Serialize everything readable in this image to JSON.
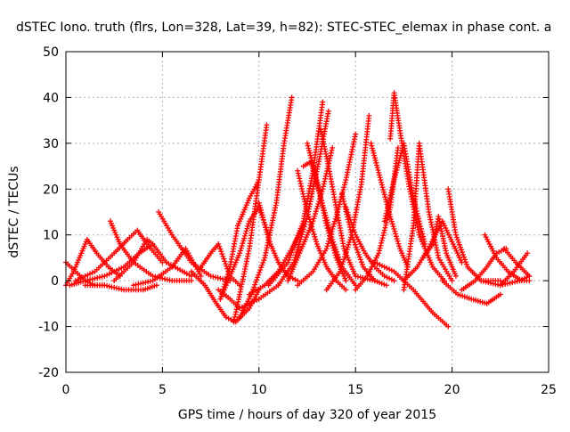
{
  "chart_data": {
    "type": "scatter",
    "title": "dSTEC Iono. truth (flrs, Lon=328, Lat=39, h=82): STEC-STEC_elemax in phase cont. a",
    "xlabel": "GPS time / hours of day 320 of year 2015",
    "ylabel": "dSTEC  / TECUs",
    "xlim": [
      0,
      25
    ],
    "ylim": [
      -20,
      50
    ],
    "xticks": [
      0,
      5,
      10,
      15,
      20,
      25
    ],
    "yticks": [
      -20,
      -10,
      0,
      10,
      20,
      30,
      40,
      50
    ],
    "grid": true,
    "marker": "+",
    "color": "#ff0000",
    "series": [
      {
        "x": [
          0.0,
          0.5,
          1.0,
          1.5,
          2.0
        ],
        "y": [
          4,
          2,
          0,
          -1,
          -1
        ]
      },
      {
        "x": [
          0.0,
          0.4,
          0.8,
          1.1,
          1.6,
          2.2,
          2.8
        ],
        "y": [
          -1,
          2,
          6,
          9,
          6,
          3,
          1
        ]
      },
      {
        "x": [
          0.2,
          1.0,
          2.0,
          3.0,
          3.8,
          4.5
        ],
        "y": [
          -1,
          0,
          1,
          3,
          6,
          8
        ]
      },
      {
        "x": [
          2.3,
          2.8,
          3.5,
          4.5,
          5.5,
          6.5
        ],
        "y": [
          13,
          8,
          4,
          1,
          0,
          0
        ]
      },
      {
        "x": [
          0.5,
          1.5,
          2.5,
          3.2,
          3.7,
          4.2,
          5.0
        ],
        "y": [
          0,
          2,
          6,
          9,
          11,
          8,
          4
        ]
      },
      {
        "x": [
          1.0,
          2.0,
          3.0,
          4.0,
          4.7
        ],
        "y": [
          -1,
          -1,
          -2,
          -2,
          -1
        ]
      },
      {
        "x": [
          2.5,
          3.5,
          4.2,
          4.5,
          5.2,
          6.5
        ],
        "y": [
          0,
          4,
          9,
          8,
          4,
          1
        ]
      },
      {
        "x": [
          4.8,
          5.5,
          6.5,
          7.5,
          8.5
        ],
        "y": [
          15,
          10,
          4,
          1,
          0
        ]
      },
      {
        "x": [
          3.5,
          4.5,
          5.5,
          6.2,
          7.0
        ],
        "y": [
          -1,
          0,
          3,
          7,
          1
        ]
      },
      {
        "x": [
          6.5,
          7.2,
          7.8,
          8.3,
          8.8,
          9.5,
          10.0
        ],
        "y": [
          2,
          -1,
          -5,
          -8,
          -9,
          -6,
          -2
        ]
      },
      {
        "x": [
          7.0,
          7.5,
          7.9,
          8.5,
          9.0
        ],
        "y": [
          3,
          6,
          8,
          1,
          -1
        ]
      },
      {
        "x": [
          7.9,
          8.5,
          9.0,
          10.0,
          11.0
        ],
        "y": [
          -2,
          -4,
          -6,
          -4,
          -1
        ]
      },
      {
        "x": [
          8.0,
          8.5,
          9.0,
          9.5,
          10.0,
          10.5
        ],
        "y": [
          -4,
          1,
          6,
          13,
          16,
          10
        ]
      },
      {
        "x": [
          8.0,
          8.5,
          8.9,
          9.5,
          10.0
        ],
        "y": [
          -4,
          3,
          12,
          18,
          22
        ]
      },
      {
        "x": [
          8.7,
          9.0,
          9.5,
          10.0,
          10.4
        ],
        "y": [
          -9,
          -3,
          7,
          22,
          34
        ]
      },
      {
        "x": [
          9.0,
          9.6,
          10.3,
          10.9,
          11.3,
          11.7
        ],
        "y": [
          -8,
          -3,
          5,
          17,
          30,
          40
        ]
      },
      {
        "x": [
          10.0,
          10.5,
          11.0,
          11.5,
          12.0
        ],
        "y": [
          17,
          9,
          4,
          1,
          0
        ]
      },
      {
        "x": [
          9.5,
          10.3,
          11.0,
          11.7,
          12.3
        ],
        "y": [
          -3,
          -1,
          2,
          7,
          12
        ]
      },
      {
        "x": [
          10.5,
          11.5,
          12.3,
          12.8,
          13.3
        ],
        "y": [
          -1,
          4,
          13,
          24,
          39
        ]
      },
      {
        "x": [
          11.0,
          11.8,
          12.5,
          13.1,
          13.6
        ],
        "y": [
          -1,
          4,
          14,
          26,
          37
        ]
      },
      {
        "x": [
          11.5,
          12.2,
          12.8,
          13.3,
          13.8
        ],
        "y": [
          0,
          7,
          13,
          20,
          29
        ]
      },
      {
        "x": [
          12.0,
          12.5,
          13.0,
          13.5,
          14.0,
          14.5
        ],
        "y": [
          24,
          15,
          8,
          3,
          0,
          -2
        ]
      },
      {
        "x": [
          12.5,
          13.0,
          13.5,
          14.0,
          14.5
        ],
        "y": [
          30,
          22,
          12,
          5,
          0
        ]
      },
      {
        "x": [
          12.3,
          12.7,
          13.2,
          13.8,
          14.3,
          15.0
        ],
        "y": [
          25,
          26,
          18,
          9,
          3,
          -1
        ]
      },
      {
        "x": [
          13.2,
          13.6,
          14.0,
          14.4,
          15.0,
          16.0
        ],
        "y": [
          33,
          25,
          16,
          7,
          1,
          0
        ]
      },
      {
        "x": [
          12.0,
          12.8,
          13.5,
          14.0,
          14.5,
          15.0
        ],
        "y": [
          -1,
          2,
          7,
          14,
          22,
          32
        ]
      },
      {
        "x": [
          13.5,
          14.2,
          14.8,
          15.3,
          15.7
        ],
        "y": [
          -2,
          2,
          10,
          21,
          36
        ]
      },
      {
        "x": [
          14.3,
          14.8,
          15.4,
          16.0,
          16.6
        ],
        "y": [
          19,
          10,
          3,
          0,
          -1
        ]
      },
      {
        "x": [
          14.5,
          15.0,
          15.5,
          16.0,
          16.5,
          17.0
        ],
        "y": [
          16,
          10,
          6,
          3,
          1,
          0
        ]
      },
      {
        "x": [
          15.0,
          15.6,
          16.2,
          16.8,
          17.2
        ],
        "y": [
          -2,
          1,
          6,
          16,
          29
        ]
      },
      {
        "x": [
          15.8,
          16.3,
          16.8,
          17.3,
          17.7
        ],
        "y": [
          30,
          22,
          14,
          7,
          3
        ]
      },
      {
        "x": [
          16.5,
          17.0,
          17.5,
          18.0,
          18.6
        ],
        "y": [
          13,
          22,
          30,
          18,
          8
        ]
      },
      {
        "x": [
          16.8,
          17.0,
          17.4,
          17.8,
          18.3,
          19.0,
          19.6
        ],
        "y": [
          31,
          41,
          30,
          20,
          10,
          3,
          0
        ]
      },
      {
        "x": [
          16.0,
          17.0,
          18.0,
          19.0,
          19.8
        ],
        "y": [
          4,
          2,
          -2,
          -7,
          -10
        ]
      },
      {
        "x": [
          17.5,
          18.0,
          18.3,
          18.8,
          19.3,
          20.0
        ],
        "y": [
          -2,
          12,
          30,
          15,
          5,
          0
        ]
      },
      {
        "x": [
          17.5,
          18.2,
          18.9,
          19.5,
          20.5
        ],
        "y": [
          0,
          3,
          8,
          13,
          4
        ]
      },
      {
        "x": [
          18.5,
          19.0,
          19.3,
          19.7,
          20.2
        ],
        "y": [
          5,
          8,
          14,
          6,
          1
        ]
      },
      {
        "x": [
          19.5,
          20.3,
          21.0,
          21.8,
          22.5
        ],
        "y": [
          0,
          -3,
          -4,
          -5,
          -3
        ]
      },
      {
        "x": [
          19.8,
          20.2,
          20.8,
          21.5,
          22.5
        ],
        "y": [
          20,
          10,
          3,
          0,
          0
        ]
      },
      {
        "x": [
          20.5,
          21.2,
          21.8,
          22.3,
          22.8
        ],
        "y": [
          -2,
          0,
          3,
          6,
          7
        ]
      },
      {
        "x": [
          21.7,
          22.3,
          22.9,
          23.6,
          24.0
        ],
        "y": [
          10,
          5,
          2,
          0,
          0
        ]
      },
      {
        "x": [
          22.7,
          23.3,
          24.0
        ],
        "y": [
          7,
          4,
          1
        ]
      },
      {
        "x": [
          22.5,
          23.2,
          23.9
        ],
        "y": [
          -1,
          2,
          6
        ]
      },
      {
        "x": [
          21.5,
          22.5,
          23.5,
          24.0
        ],
        "y": [
          0,
          -1,
          0,
          1
        ]
      }
    ]
  }
}
